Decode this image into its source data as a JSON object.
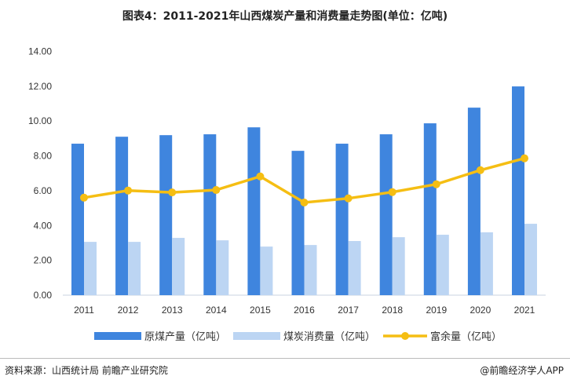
{
  "chart_data": {
    "type": "bar+line",
    "title": "图表4：2011-2021年山西煤炭产量和消费量走势图(单位：亿吨)",
    "categories": [
      "2011",
      "2012",
      "2013",
      "2014",
      "2015",
      "2016",
      "2017",
      "2018",
      "2019",
      "2020",
      "2021"
    ],
    "ylim": [
      0,
      14
    ],
    "yticks": [
      "0.00",
      "2.00",
      "4.00",
      "6.00",
      "8.00",
      "10.00",
      "12.00",
      "14.00"
    ],
    "grid": false,
    "legend": "bottom",
    "series": [
      {
        "name": "原煤产量（亿吨）",
        "type": "bar",
        "color": "#3f85de",
        "values": [
          8.7,
          9.1,
          9.19,
          9.24,
          9.64,
          8.29,
          8.7,
          9.24,
          9.87,
          10.77,
          11.99
        ]
      },
      {
        "name": "煤炭消费量（亿吨）",
        "type": "bar",
        "color": "#bcd5f3",
        "values": [
          3.06,
          3.06,
          3.29,
          3.15,
          2.79,
          2.88,
          3.11,
          3.33,
          3.47,
          3.61,
          4.1
        ]
      },
      {
        "name": "富余量（亿吨）",
        "type": "line",
        "color": "#f5be13",
        "values": [
          5.6,
          6.01,
          5.9,
          6.04,
          6.82,
          5.32,
          5.56,
          5.92,
          6.37,
          7.18,
          7.86
        ]
      }
    ]
  },
  "footer": {
    "source": "资料来源：山西统计局 前瞻产业研究院",
    "brand": "@前瞻经济学人APP"
  },
  "watermark": "前瞻产业研究院"
}
